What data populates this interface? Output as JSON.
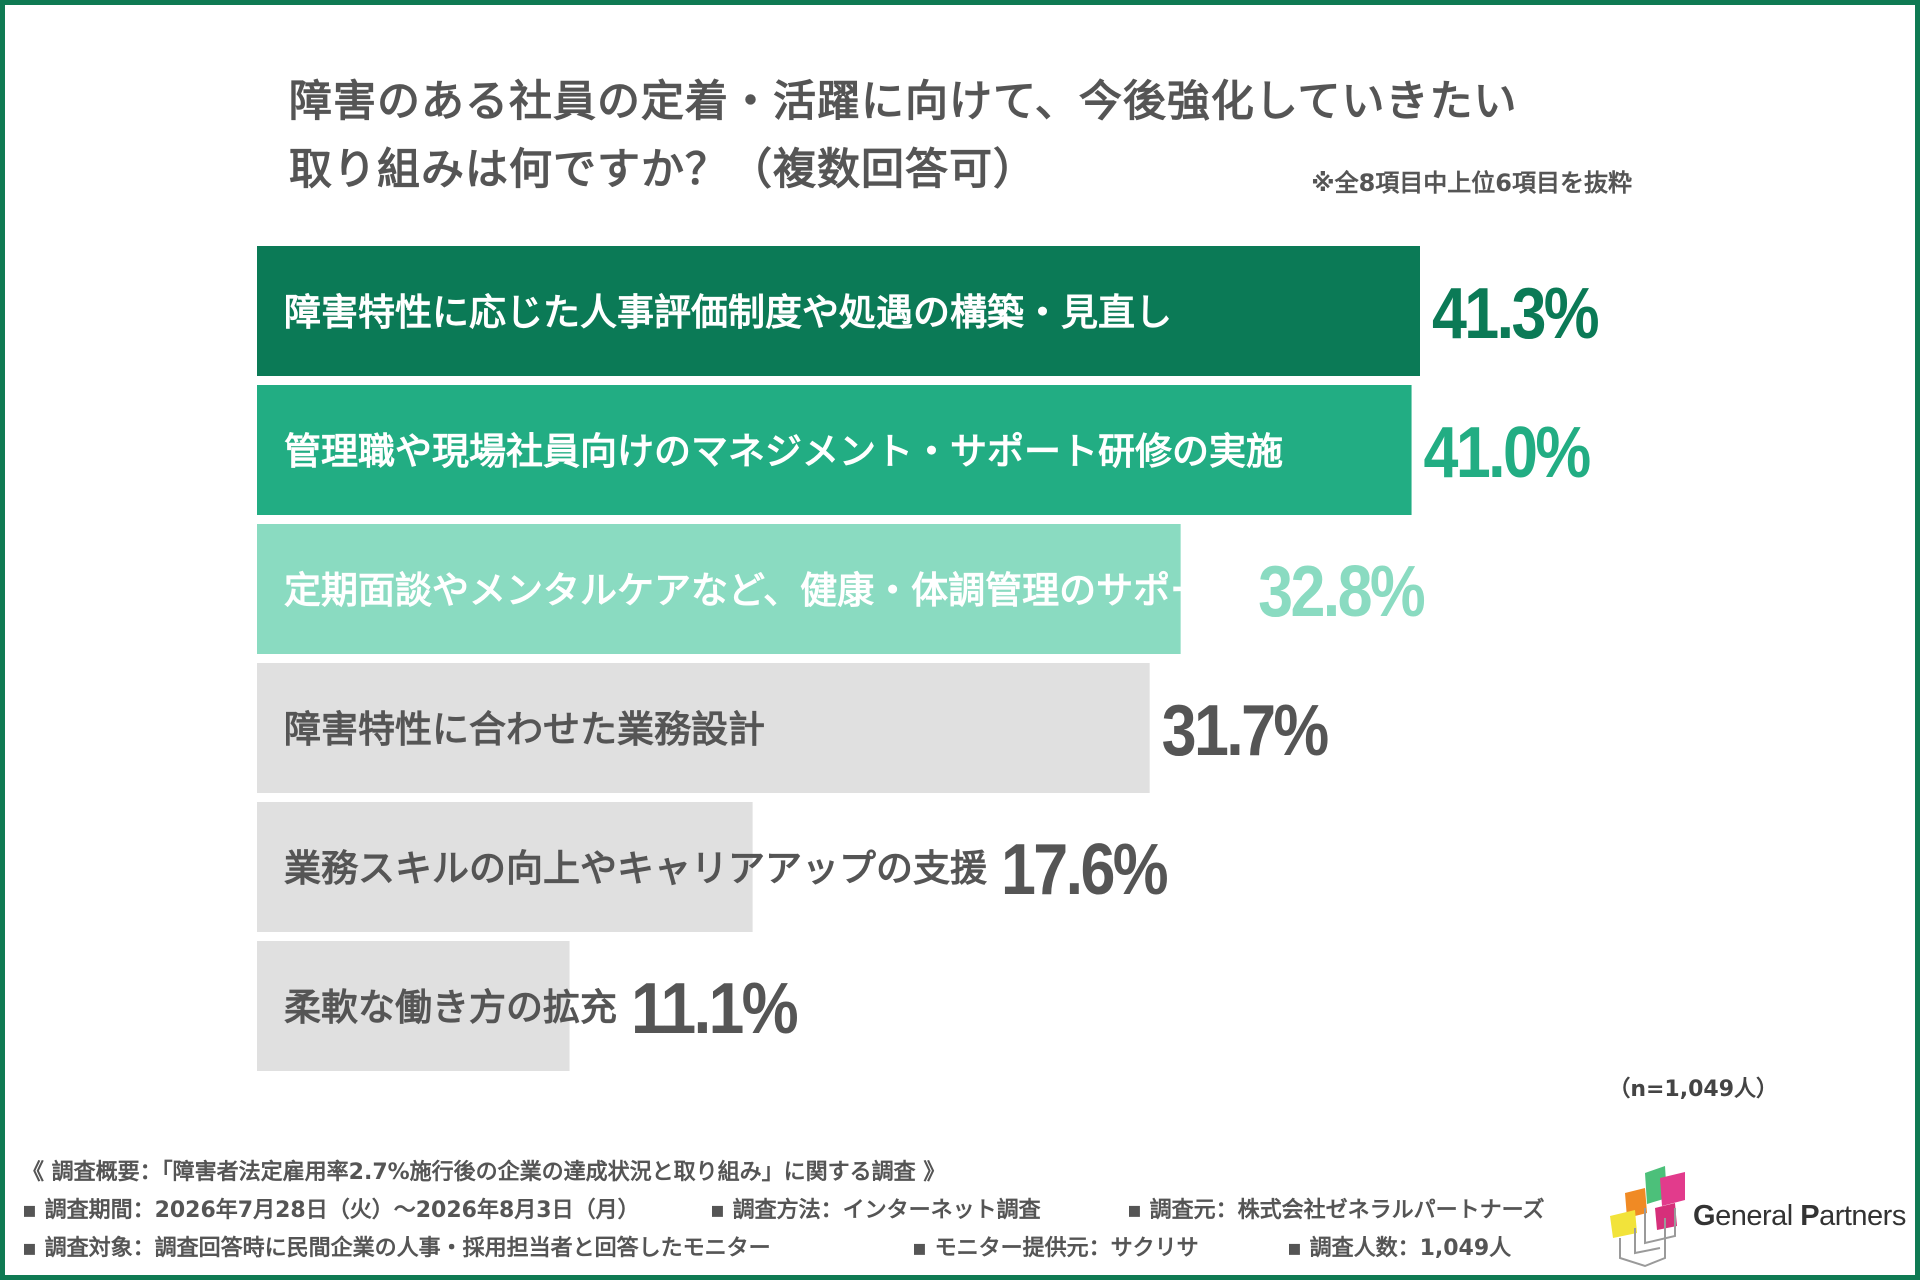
{
  "title_line1": "障害のある社員の定着・活躍に向けて、今後強化していきたい",
  "title_line2": "取り組みは何ですか？（複数回答可）",
  "title_note": "※全8項目中上位6項目を抜粋",
  "chart_data": {
    "type": "bar",
    "orientation": "horizontal",
    "categories": [
      "障害特性に応じた人事評価制度や処遇の構築・見直し",
      "管理職や現場社員向けのマネジメント・サポート研修の実施",
      "定期面談やメンタルケアなど、健康・体調管理のサポート",
      "障害特性に合わせた業務設計",
      "業務スキルの向上やキャリアアップの支援",
      "柔軟な働き方の拡充"
    ],
    "values": [
      41.3,
      41.0,
      32.8,
      31.7,
      17.6,
      11.1
    ],
    "value_labels": [
      "41.3%",
      "41.0%",
      "32.8%",
      "31.7%",
      "17.6%",
      "11.1%"
    ],
    "unit": "%",
    "xlim": [
      0,
      41.3
    ],
    "bar_colors": [
      "#0b7a56",
      "#22ad83",
      "#8adbc1",
      "#e0e0e0",
      "#e0e0e0",
      "#e0e0e0"
    ],
    "label_colors": [
      "#ffffff",
      "#ffffff",
      "#ffffff",
      "#555555",
      "#555555",
      "#555555"
    ],
    "value_colors": [
      "#0b7a56",
      "#22ad83",
      "#8adbc1",
      "#555555",
      "#555555",
      "#555555"
    ],
    "grid": false,
    "legend": "none"
  },
  "n_note": "（n=1,049人）",
  "footer": {
    "summary": "《 調査概要：「障害者法定雇用率2.7%施行後の企業の達成状況と取り組み」に関する調査 》",
    "period": "▪ 調査期間：2026年7月28日（火）～2026年8月3日（月）",
    "method": "▪ 調査方法：インターネット調査",
    "source": "▪ 調査元：株式会社ゼネラルパートナーズ",
    "target": "▪ 調査対象：調査回答時に民間企業の人事・採用担当者と回答したモニター",
    "provider": "▪ モニター提供元：サクリサ",
    "count": "▪ 調査人数：1,049人"
  },
  "logo": {
    "name_part1": "G",
    "name_part2": "eneral ",
    "name_part3": "P",
    "name_part4": "artners"
  }
}
